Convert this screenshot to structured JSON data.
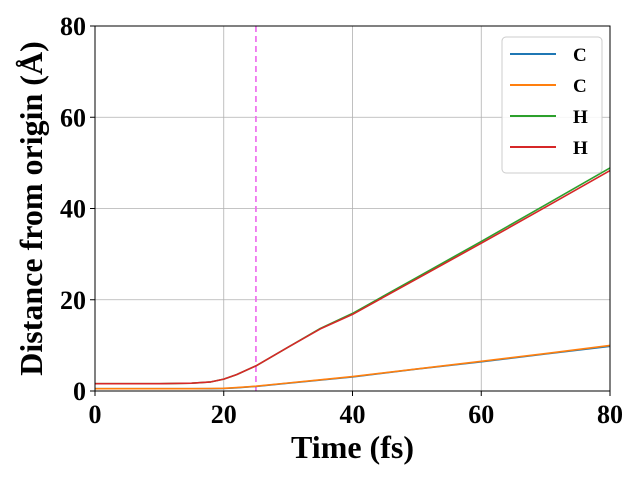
{
  "chart_data": {
    "type": "line",
    "xlabel": "Time (fs)",
    "ylabel": "Distance from origin (Å)",
    "xlim": [
      0,
      80
    ],
    "ylim": [
      0,
      80
    ],
    "xticks": [
      0,
      20,
      40,
      60,
      80
    ],
    "yticks": [
      0,
      20,
      40,
      60,
      80
    ],
    "grid": true,
    "legend_position": "top-right",
    "vline": {
      "x": 25,
      "color": "#ee66ee",
      "style": "dashed"
    },
    "x": [
      0,
      5,
      10,
      15,
      18,
      20,
      22,
      25,
      30,
      35,
      40,
      50,
      60,
      70,
      80
    ],
    "series": [
      {
        "name": "C",
        "color": "#1f77b4",
        "values": [
          0.5,
          0.5,
          0.5,
          0.5,
          0.5,
          0.55,
          0.7,
          1.0,
          1.7,
          2.4,
          3.1,
          4.8,
          6.4,
          8.1,
          9.8
        ]
      },
      {
        "name": "C",
        "color": "#ff7f0e",
        "values": [
          0.5,
          0.5,
          0.5,
          0.5,
          0.55,
          0.6,
          0.75,
          1.05,
          1.75,
          2.45,
          3.15,
          4.85,
          6.5,
          8.2,
          10.0
        ]
      },
      {
        "name": "H",
        "color": "#2ca02c",
        "values": [
          1.6,
          1.6,
          1.6,
          1.7,
          2.0,
          2.6,
          3.6,
          5.5,
          9.6,
          13.7,
          17.0,
          24.9,
          32.8,
          40.8,
          48.9
        ]
      },
      {
        "name": "H",
        "color": "#d62728",
        "values": [
          1.6,
          1.6,
          1.6,
          1.7,
          2.0,
          2.6,
          3.6,
          5.5,
          9.6,
          13.6,
          16.8,
          24.6,
          32.4,
          40.3,
          48.3
        ]
      }
    ]
  }
}
